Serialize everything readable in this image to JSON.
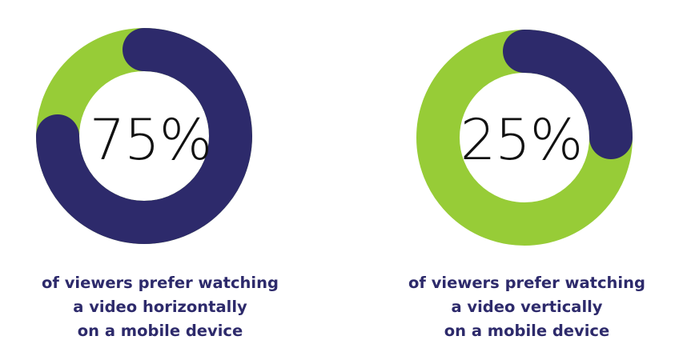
{
  "colors": {
    "primary": "#2d2a6b",
    "secondary": "#97cc37",
    "text": "#111111"
  },
  "chart_data": [
    {
      "type": "donut",
      "value_label": "75%",
      "slices": [
        {
          "value": 75,
          "color": "#2d2a6b"
        },
        {
          "value": 25,
          "color": "#97cc37"
        }
      ],
      "caption": [
        "of viewers prefer watching",
        "a video horizontally",
        "on a mobile device"
      ]
    },
    {
      "type": "donut",
      "value_label": "25%",
      "slices": [
        {
          "value": 25,
          "color": "#2d2a6b"
        },
        {
          "value": 75,
          "color": "#97cc37"
        }
      ],
      "caption": [
        "of viewers prefer watching",
        "a video vertically",
        "on a mobile device"
      ]
    }
  ]
}
